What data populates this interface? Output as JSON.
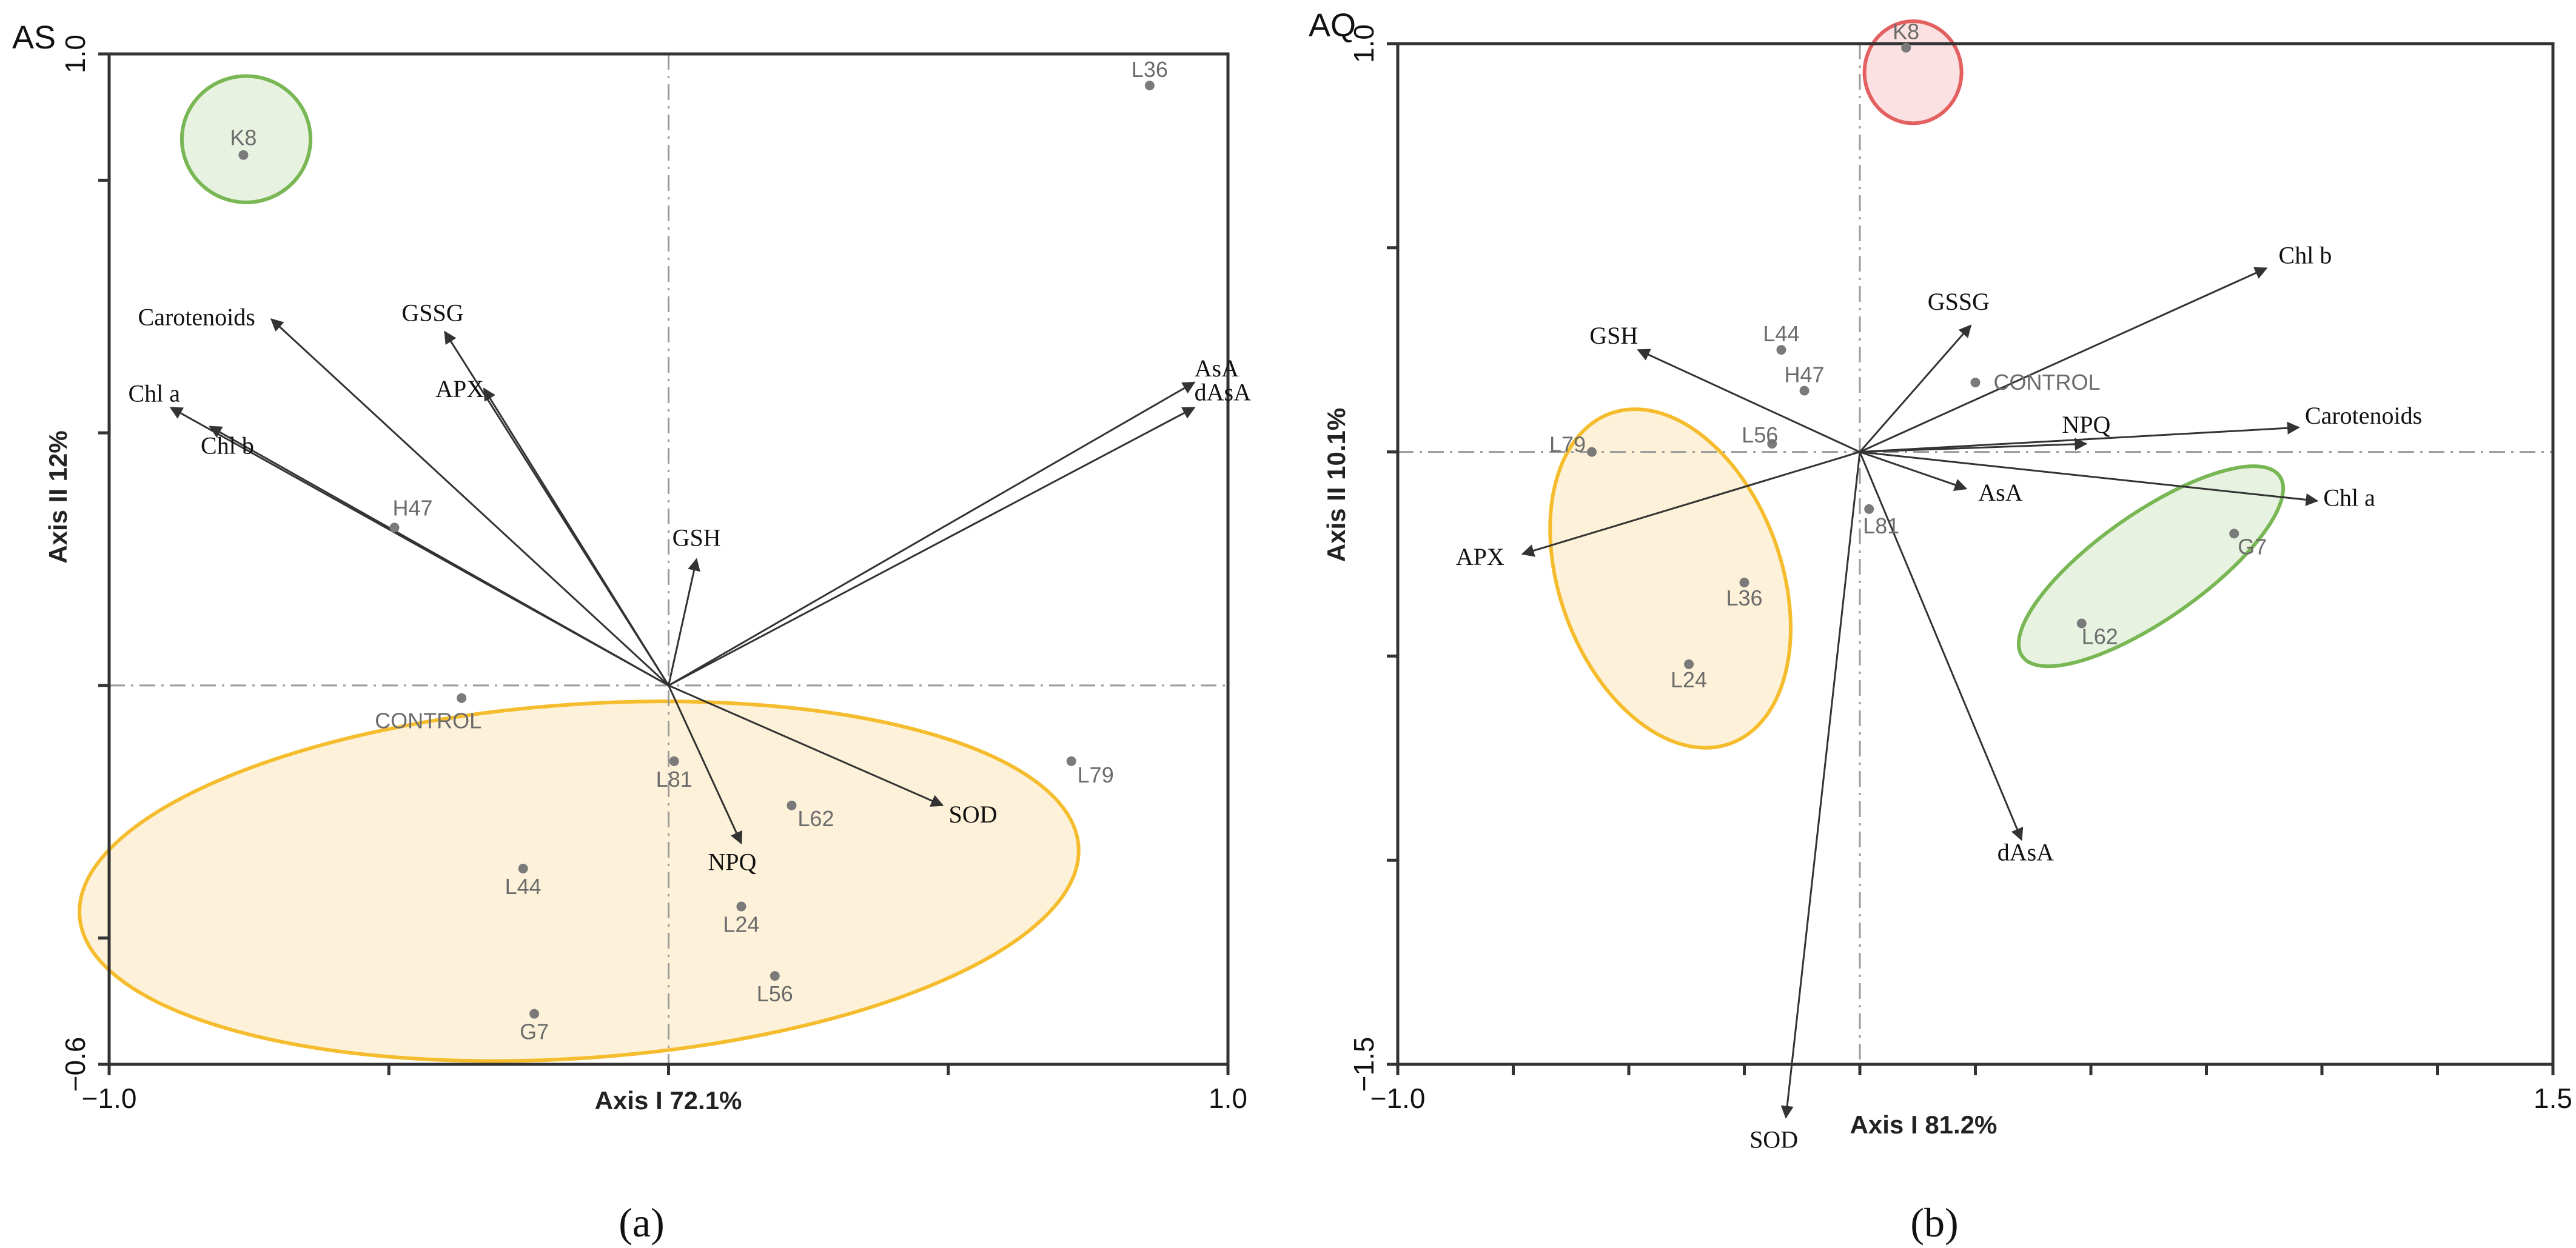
{
  "colors": {
    "yellow_fill": "#fdf2d9",
    "yellow_stroke": "#f5bd2e",
    "green_fill": "#e8f2e1",
    "green_stroke": "#78b754",
    "red_fill": "#fbe1e1",
    "red_stroke": "#e36060",
    "vector": "#333333",
    "point": "#7a7a7a",
    "label_grey": "#6b6b6b"
  },
  "chart_data": [
    {
      "type": "scatter",
      "subtype": "biplot",
      "panel": "a",
      "title": "AS",
      "caption": "(a)",
      "xlabel": "Axis I 72.1%",
      "ylabel": "Axis II 12%",
      "xlim": [
        -1.0,
        1.0
      ],
      "ylim": [
        -0.6,
        1.0
      ],
      "xticks": [
        -1.0,
        -0.5,
        0.0,
        0.5,
        1.0
      ],
      "yticks": [
        -0.6,
        -0.4,
        0.0,
        0.4,
        0.8,
        1.0
      ],
      "xtick_labels": [
        {
          "value": -1.0,
          "text": "−1.0"
        },
        {
          "value": 1.0,
          "text": "1.0"
        }
      ],
      "ytick_labels": [
        {
          "value": -0.6,
          "text": "−0.6"
        },
        {
          "value": 1.0,
          "text": "1.0"
        }
      ],
      "vectors": [
        {
          "name": "Carotenoids",
          "x": -0.71,
          "y": 0.58
        },
        {
          "name": "Chl a",
          "x": -0.89,
          "y": 0.44
        },
        {
          "name": "Chl b",
          "x": -0.82,
          "y": 0.41
        },
        {
          "name": "GSSG",
          "x": -0.4,
          "y": 0.56
        },
        {
          "name": "APX",
          "x": -0.33,
          "y": 0.47
        },
        {
          "name": "GSH",
          "x": 0.05,
          "y": 0.2
        },
        {
          "name": "AsA",
          "x": 0.94,
          "y": 0.48
        },
        {
          "name": "dAsA",
          "x": 0.94,
          "y": 0.44
        },
        {
          "name": "SOD",
          "x": 0.49,
          "y": -0.19
        },
        {
          "name": "NPQ",
          "x": 0.13,
          "y": -0.25
        }
      ],
      "points": [
        {
          "name": "K8",
          "x": -0.76,
          "y": 0.84
        },
        {
          "name": "L36",
          "x": 0.86,
          "y": 0.95
        },
        {
          "name": "H47",
          "x": -0.49,
          "y": 0.25
        },
        {
          "name": "CONTROL",
          "x": -0.37,
          "y": -0.02
        },
        {
          "name": "L81",
          "x": 0.01,
          "y": -0.12
        },
        {
          "name": "L62",
          "x": 0.22,
          "y": -0.19
        },
        {
          "name": "L79",
          "x": 0.72,
          "y": -0.12
        },
        {
          "name": "L44",
          "x": -0.26,
          "y": -0.29
        },
        {
          "name": "L24",
          "x": 0.13,
          "y": -0.35
        },
        {
          "name": "L56",
          "x": 0.19,
          "y": -0.46
        },
        {
          "name": "G7",
          "x": -0.24,
          "y": -0.52
        }
      ],
      "groups": [
        {
          "color": "green",
          "cx": -0.755,
          "cy": 0.865,
          "rx": 0.115,
          "ry": 0.1,
          "rotation": 0
        },
        {
          "color": "yellow",
          "cx": -0.16,
          "cy": -0.31,
          "rx": 0.895,
          "ry": 0.28,
          "rotation": -4
        }
      ]
    },
    {
      "type": "scatter",
      "subtype": "biplot",
      "panel": "b",
      "title": "AQ",
      "caption": "(b)",
      "xlabel": "Axis I 81.2%",
      "ylabel": "Axis II 10.1%",
      "xlim": [
        -1.0,
        1.5
      ],
      "ylim": [
        -1.5,
        1.0
      ],
      "xticks": [
        -1.0,
        -0.75,
        -0.5,
        -0.25,
        0.0,
        0.25,
        0.5,
        0.75,
        1.0,
        1.25,
        1.5
      ],
      "yticks": [
        -1.5,
        -1.0,
        -0.5,
        0.0,
        0.5,
        1.0
      ],
      "xtick_labels": [
        {
          "value": -1.0,
          "text": "−1.0"
        },
        {
          "value": 1.5,
          "text": "1.5"
        }
      ],
      "ytick_labels": [
        {
          "value": -1.5,
          "text": "−1.5"
        },
        {
          "value": 1.0,
          "text": "1.0"
        }
      ],
      "vectors": [
        {
          "name": "GSH",
          "x": -0.48,
          "y": 0.25
        },
        {
          "name": "APX",
          "x": -0.73,
          "y": -0.25
        },
        {
          "name": "GSSG",
          "x": 0.24,
          "y": 0.31
        },
        {
          "name": "Chl b",
          "x": 0.88,
          "y": 0.45
        },
        {
          "name": "NPQ",
          "x": 0.49,
          "y": 0.02
        },
        {
          "name": "Carotenoids",
          "x": 0.95,
          "y": 0.06
        },
        {
          "name": "Chl a",
          "x": 0.99,
          "y": -0.12
        },
        {
          "name": "AsA",
          "x": 0.23,
          "y": -0.09
        },
        {
          "name": "dAsA",
          "x": 0.35,
          "y": -0.95
        },
        {
          "name": "SOD",
          "x": -0.16,
          "y": -1.63
        }
      ],
      "points": [
        {
          "name": "K8",
          "x": 0.1,
          "y": 0.99
        },
        {
          "name": "L44",
          "x": -0.17,
          "y": 0.25
        },
        {
          "name": "H47",
          "x": -0.12,
          "y": 0.15
        },
        {
          "name": "CONTROL",
          "x": 0.25,
          "y": 0.17
        },
        {
          "name": "L79",
          "x": -0.58,
          "y": 0.0
        },
        {
          "name": "L56",
          "x": -0.19,
          "y": 0.02
        },
        {
          "name": "L81",
          "x": 0.02,
          "y": -0.14
        },
        {
          "name": "L36",
          "x": -0.25,
          "y": -0.32
        },
        {
          "name": "L24",
          "x": -0.37,
          "y": -0.52
        },
        {
          "name": "G7",
          "x": 0.81,
          "y": -0.2
        },
        {
          "name": "L62",
          "x": 0.48,
          "y": -0.42
        }
      ],
      "groups": [
        {
          "color": "red",
          "cx": 0.115,
          "cy": 0.93,
          "rx": 0.105,
          "ry": 0.125,
          "rotation": 0
        },
        {
          "color": "yellow",
          "cx": -0.41,
          "cy": -0.31,
          "rx": 0.24,
          "ry": 0.43,
          "rotation": -20
        },
        {
          "color": "green",
          "cx": 0.63,
          "cy": -0.28,
          "rx": 0.34,
          "ry": 0.13,
          "rotation": -35
        }
      ]
    }
  ]
}
